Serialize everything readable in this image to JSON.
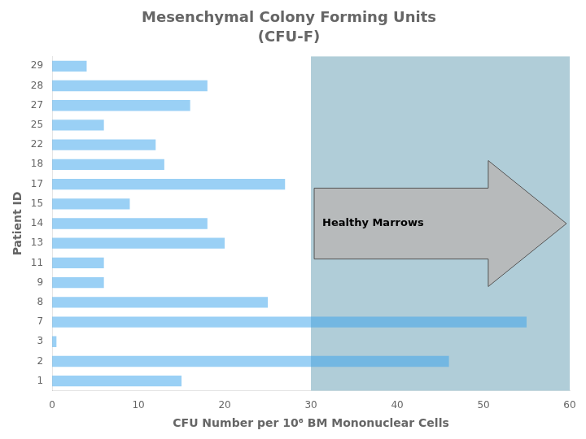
{
  "chart_data": {
    "type": "bar",
    "orientation": "horizontal",
    "title": "Mesenchymal Colony Forming Units",
    "subtitle": "(CFU-F)",
    "xlabel": "CFU Number per 10⁶ BM Mononuclear Cells",
    "ylabel": "Patient ID",
    "categories": [
      "1",
      "2",
      "3",
      "7",
      "8",
      "9",
      "11",
      "13",
      "14",
      "15",
      "17",
      "18",
      "22",
      "25",
      "27",
      "28",
      "29"
    ],
    "values": [
      15,
      46,
      0.5,
      55,
      25,
      6,
      6,
      20,
      18,
      9,
      27,
      13,
      12,
      6,
      16,
      18,
      4
    ],
    "xlim": [
      0,
      60
    ],
    "xticks": [
      0,
      10,
      20,
      30,
      40,
      50,
      60
    ],
    "grid": false,
    "annotations": [
      {
        "text": "Healthy Marrows",
        "x": [
          30,
          60
        ],
        "color": "#b0cdd8"
      }
    ]
  }
}
